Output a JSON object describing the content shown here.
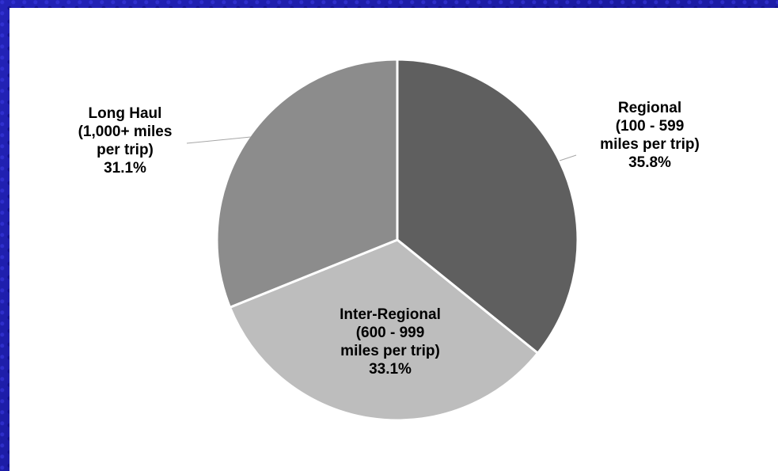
{
  "chart_data": {
    "type": "pie",
    "title": "",
    "slices": [
      {
        "label_lines": [
          "Regional",
          "(100 - 599",
          "miles per trip)"
        ],
        "value_label": "35.8%",
        "value": 35.8,
        "color": "#5f5f5f"
      },
      {
        "label_lines": [
          "Inter-Regional",
          "(600 - 999",
          "miles per trip)"
        ],
        "value_label": "33.1%",
        "value": 33.1,
        "color": "#bdbdbd"
      },
      {
        "label_lines": [
          "Long Haul",
          "(1,000+ miles",
          "per trip)"
        ],
        "value_label": "31.1%",
        "value": 31.1,
        "color": "#8c8c8c"
      }
    ],
    "start": "12 o'clock",
    "direction": "clockwise",
    "legend": "none",
    "slice_border_color": "#ffffff",
    "background_color": "#ffffff",
    "frame_color": "#1f1fae"
  }
}
